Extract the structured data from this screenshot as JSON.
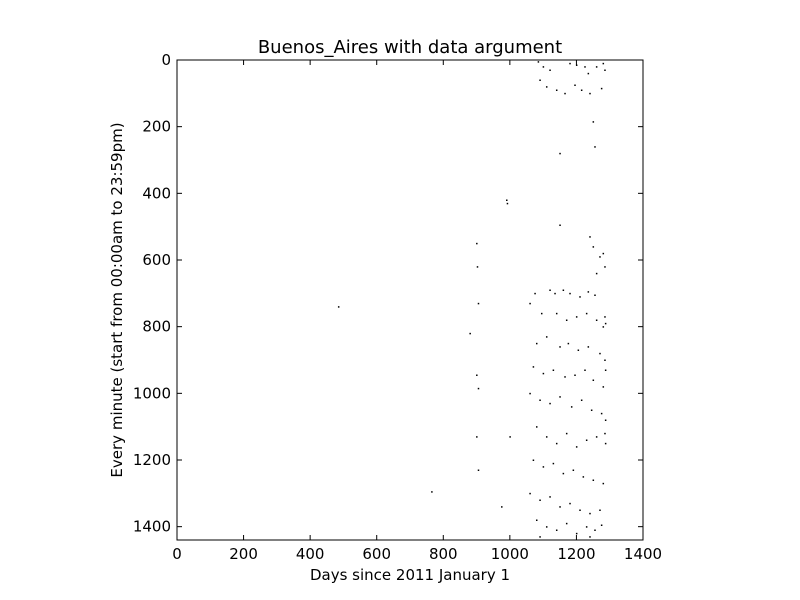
{
  "chart_data": {
    "type": "scatter",
    "title": "Buenos_Aires with data argument",
    "xlabel": "Days since 2011 January 1",
    "ylabel": "Every minute (start from 00:00am to 23:59pm)",
    "xlim": [
      0,
      1400
    ],
    "ylim": [
      1440,
      0
    ],
    "y_axis_inverted": true,
    "xticks": [
      0,
      200,
      400,
      600,
      800,
      1000,
      1200,
      1400
    ],
    "xtick_labels": [
      "0",
      "200",
      "400",
      "600",
      "800",
      "1000",
      "1200",
      "1400"
    ],
    "yticks": [
      0,
      200,
      400,
      600,
      800,
      1000,
      1200,
      1400
    ],
    "ytick_labels": [
      "0",
      "200",
      "400",
      "600",
      "800",
      "1000",
      "1200",
      "1400"
    ],
    "grid": false,
    "marker_color": "#000000",
    "points": [
      [
        1085,
        5
      ],
      [
        1100,
        20
      ],
      [
        1120,
        30
      ],
      [
        1180,
        10
      ],
      [
        1200,
        15
      ],
      [
        1225,
        20
      ],
      [
        1235,
        40
      ],
      [
        1260,
        20
      ],
      [
        1280,
        10
      ],
      [
        1090,
        60
      ],
      [
        1110,
        80
      ],
      [
        1140,
        90
      ],
      [
        1165,
        100
      ],
      [
        1195,
        75
      ],
      [
        1215,
        90
      ],
      [
        1240,
        100
      ],
      [
        1275,
        85
      ],
      [
        1285,
        30
      ],
      [
        1250,
        185
      ],
      [
        1255,
        260
      ],
      [
        1150,
        280
      ],
      [
        990,
        420
      ],
      [
        992,
        430
      ],
      [
        1150,
        495
      ],
      [
        1240,
        530
      ],
      [
        1250,
        560
      ],
      [
        1270,
        590
      ],
      [
        1280,
        580
      ],
      [
        1260,
        640
      ],
      [
        1285,
        620
      ],
      [
        900,
        550
      ],
      [
        902,
        620
      ],
      [
        905,
        730
      ],
      [
        880,
        820
      ],
      [
        485,
        740
      ],
      [
        1075,
        700
      ],
      [
        1120,
        690
      ],
      [
        1135,
        700
      ],
      [
        1160,
        690
      ],
      [
        1180,
        700
      ],
      [
        1210,
        710
      ],
      [
        1235,
        695
      ],
      [
        1255,
        705
      ],
      [
        1285,
        770
      ],
      [
        1287,
        790
      ],
      [
        1060,
        730
      ],
      [
        1095,
        760
      ],
      [
        1140,
        760
      ],
      [
        1170,
        780
      ],
      [
        1200,
        770
      ],
      [
        1230,
        760
      ],
      [
        1260,
        780
      ],
      [
        1280,
        800
      ],
      [
        1080,
        850
      ],
      [
        1110,
        830
      ],
      [
        1150,
        860
      ],
      [
        1175,
        850
      ],
      [
        1205,
        870
      ],
      [
        1235,
        860
      ],
      [
        1270,
        880
      ],
      [
        1285,
        900
      ],
      [
        1287,
        930
      ],
      [
        900,
        945
      ],
      [
        905,
        985
      ],
      [
        1070,
        920
      ],
      [
        1100,
        940
      ],
      [
        1130,
        930
      ],
      [
        1165,
        950
      ],
      [
        1195,
        945
      ],
      [
        1225,
        930
      ],
      [
        1250,
        960
      ],
      [
        1280,
        980
      ],
      [
        1060,
        1000
      ],
      [
        1090,
        1020
      ],
      [
        1120,
        1030
      ],
      [
        1150,
        1010
      ],
      [
        1185,
        1040
      ],
      [
        1215,
        1020
      ],
      [
        1245,
        1050
      ],
      [
        1275,
        1060
      ],
      [
        1287,
        1080
      ],
      [
        900,
        1130
      ],
      [
        1000,
        1130
      ],
      [
        905,
        1230
      ],
      [
        1080,
        1100
      ],
      [
        1110,
        1130
      ],
      [
        1140,
        1150
      ],
      [
        1170,
        1120
      ],
      [
        1200,
        1160
      ],
      [
        1230,
        1140
      ],
      [
        1260,
        1130
      ],
      [
        1285,
        1120
      ],
      [
        1287,
        1150
      ],
      [
        1070,
        1200
      ],
      [
        1100,
        1220
      ],
      [
        1130,
        1210
      ],
      [
        1160,
        1240
      ],
      [
        1190,
        1230
      ],
      [
        1220,
        1250
      ],
      [
        1250,
        1260
      ],
      [
        1280,
        1270
      ],
      [
        1060,
        1300
      ],
      [
        1090,
        1320
      ],
      [
        1120,
        1310
      ],
      [
        1150,
        1340
      ],
      [
        1180,
        1330
      ],
      [
        1210,
        1350
      ],
      [
        1240,
        1360
      ],
      [
        1270,
        1350
      ],
      [
        975,
        1340
      ],
      [
        765,
        1295
      ],
      [
        1080,
        1380
      ],
      [
        1110,
        1400
      ],
      [
        1140,
        1410
      ],
      [
        1170,
        1390
      ],
      [
        1200,
        1420
      ],
      [
        1230,
        1400
      ],
      [
        1255,
        1410
      ],
      [
        1275,
        1395
      ],
      [
        1090,
        1430
      ],
      [
        1240,
        1430
      ]
    ]
  }
}
